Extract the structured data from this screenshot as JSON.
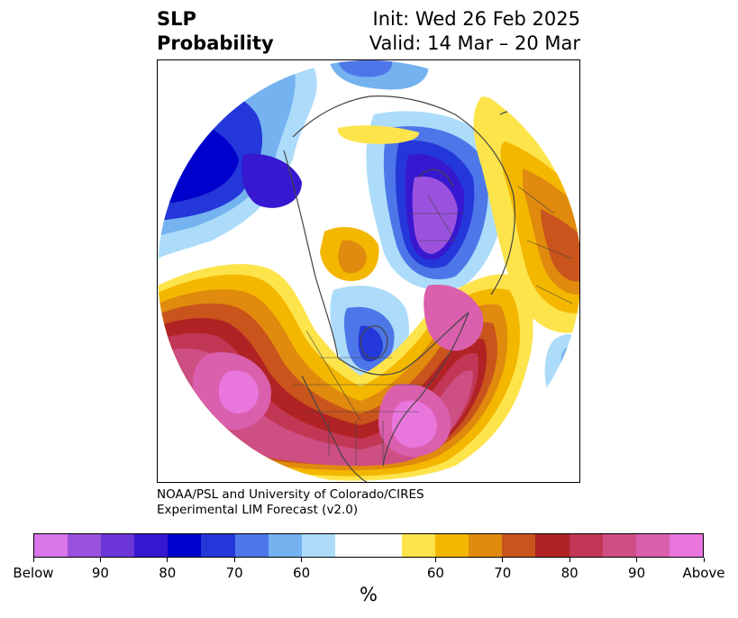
{
  "title": {
    "left_line1": "SLP",
    "left_line2": "Probability",
    "right_line1": "Init: Wed 26 Feb 2025",
    "right_line2": "Valid: 14 Mar – 20 Mar"
  },
  "credit": {
    "line1": "NOAA/PSL and University of Colorado/CIRES",
    "line2": "Experimental LIM Forecast (v2.0)"
  },
  "colorbar": {
    "unit": "%",
    "colors": [
      "#d876ea",
      "#9a52de",
      "#6c35d8",
      "#3717cf",
      "#0000cc",
      "#2437d8",
      "#4d77e8",
      "#74b2f0",
      "#acdcfa",
      "#ffffff",
      "#fde44b",
      "#f4b700",
      "#e08a0e",
      "#c9541c",
      "#b12224",
      "#c23755",
      "#cd4f84",
      "#da5fad",
      "#e876dc"
    ],
    "labels": [
      "Below",
      "90",
      "80",
      "70",
      "60",
      "60",
      "70",
      "80",
      "90",
      "Above"
    ]
  },
  "map": {
    "projection": "north-polar-stereographic",
    "regions": [
      {
        "name": "below-normal-siberia-kara",
        "category": "Below 80-Below"
      },
      {
        "name": "below-normal-north-pacific-bering",
        "category": "Below 70-80"
      },
      {
        "name": "below-normal-hudson-bay",
        "category": "Below 60-70"
      },
      {
        "name": "above-normal-north-pacific",
        "category": "Above 90-Above"
      },
      {
        "name": "above-normal-north-atlantic-canada",
        "category": "Above 80-90"
      },
      {
        "name": "above-normal-east-europe",
        "category": "Above 60-70"
      },
      {
        "name": "above-normal-arctic-ocean",
        "category": "Above 60"
      }
    ]
  }
}
